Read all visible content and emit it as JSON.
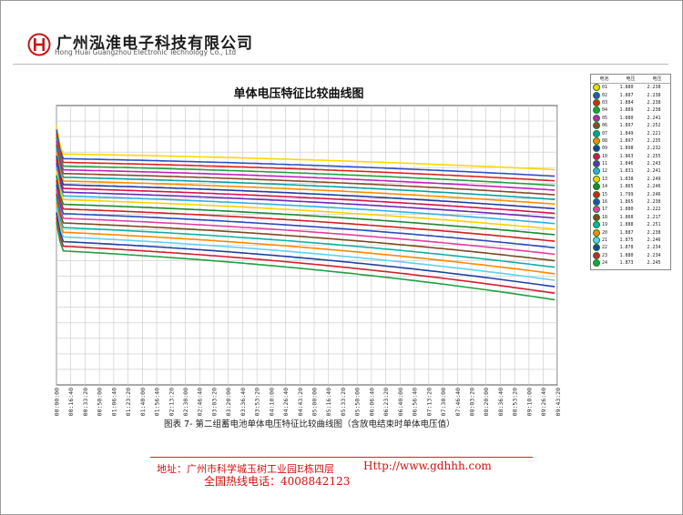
{
  "header": {
    "company_cn": "广州泓淮电子科技有限公司",
    "company_en": "Hong Huai Guangzhou Electronic Technology Co., Ltd"
  },
  "legend": {
    "headers": [
      "电池",
      "电压",
      "电压"
    ],
    "rows": [
      {
        "no": "01",
        "v1": "1.880",
        "v2": "2.238"
      },
      {
        "no": "02",
        "v1": "1.887",
        "v2": "2.238"
      },
      {
        "no": "03",
        "v1": "1.884",
        "v2": "2.238"
      },
      {
        "no": "04",
        "v1": "1.889",
        "v2": "2.238"
      },
      {
        "no": "05",
        "v1": "1.880",
        "v2": "2.241"
      },
      {
        "no": "06",
        "v1": "1.897",
        "v2": "2.252"
      },
      {
        "no": "07",
        "v1": "1.849",
        "v2": "2.221"
      },
      {
        "no": "08",
        "v1": "1.897",
        "v2": "2.235"
      },
      {
        "no": "09",
        "v1": "1.898",
        "v2": "2.232"
      },
      {
        "no": "10",
        "v1": "1.863",
        "v2": "2.255"
      },
      {
        "no": "11",
        "v1": "1.846",
        "v2": "2.243"
      },
      {
        "no": "12",
        "v1": "1.831",
        "v2": "2.241"
      },
      {
        "no": "13",
        "v1": "1.838",
        "v2": "2.249"
      },
      {
        "no": "14",
        "v1": "1.865",
        "v2": "2.246"
      },
      {
        "no": "15",
        "v1": "1.799",
        "v2": "2.246"
      },
      {
        "no": "16",
        "v1": "1.865",
        "v2": "2.238"
      },
      {
        "no": "17",
        "v1": "1.880",
        "v2": "2.222"
      },
      {
        "no": "18",
        "v1": "1.868",
        "v2": "2.217"
      },
      {
        "no": "19",
        "v1": "1.888",
        "v2": "2.251"
      },
      {
        "no": "20",
        "v1": "1.887",
        "v2": "2.238"
      },
      {
        "no": "21",
        "v1": "1.875",
        "v2": "2.246"
      },
      {
        "no": "22",
        "v1": "1.878",
        "v2": "2.234"
      },
      {
        "no": "23",
        "v1": "1.880",
        "v2": "2.234"
      },
      {
        "no": "24",
        "v1": "1.873",
        "v2": "2.245"
      }
    ]
  },
  "caption": "图表 7- 第二组蓄电池单体电压特征比较曲线图（含放电结束时单体电压值）",
  "footer": {
    "address": "地址：广州市科学城玉树工业园E栋四层",
    "url": "Http://www.gdhhh.com",
    "hotline": "全国热线电话：4008842123"
  },
  "colors": {
    "grid": "#c8c8c8",
    "footer_text": "#d01010"
  },
  "chart_data": {
    "type": "line",
    "title": "单体电压特征比较曲线图",
    "xlabel": "",
    "ylabel": "",
    "grid": true,
    "legend_placement": "right",
    "x_ticks": [
      "00:00:00",
      "00:16:40",
      "00:33:20",
      "00:50:00",
      "01:06:40",
      "01:23:20",
      "01:40:00",
      "01:56:40",
      "02:13:20",
      "02:30:00",
      "02:46:40",
      "03:03:20",
      "03:20:00",
      "03:36:40",
      "03:53:20",
      "04:10:00",
      "04:26:40",
      "04:43:20",
      "05:00:00",
      "05:16:40",
      "05:33:20",
      "05:50:00",
      "06:06:40",
      "06:23:20",
      "06:40:00",
      "06:56:40",
      "07:13:20",
      "07:30:00",
      "07:46:40",
      "08:03:20",
      "08:20:00",
      "08:36:40",
      "08:53:20",
      "09:10:00",
      "09:26:40",
      "09:43:20"
    ],
    "note_x": "x values are elapsed minutes from 00:00:00",
    "x_range_minutes": [
      0,
      583
    ],
    "y_range": [
      1.75,
      2.35
    ],
    "series": [
      {
        "color": "#ffd800",
        "start": 2.258,
        "end": 2.212
      },
      {
        "color": "#2b50c8",
        "start": 2.248,
        "end": 2.198
      },
      {
        "color": "#e02020",
        "start": 2.24,
        "end": 2.188
      },
      {
        "color": "#20a040",
        "start": 2.232,
        "end": 2.178
      },
      {
        "color": "#c020c0",
        "start": 2.224,
        "end": 2.168
      },
      {
        "color": "#8b4a2b",
        "start": 2.216,
        "end": 2.158
      },
      {
        "color": "#0aa0a0",
        "start": 2.208,
        "end": 2.148
      },
      {
        "color": "#ff8c00",
        "start": 2.2,
        "end": 2.138
      },
      {
        "color": "#1e3ca0",
        "start": 2.192,
        "end": 2.128
      },
      {
        "color": "#d81050",
        "start": 2.184,
        "end": 2.118
      },
      {
        "color": "#6a2ab8",
        "start": 2.176,
        "end": 2.108
      },
      {
        "color": "#30b0e0",
        "start": 2.168,
        "end": 2.096
      },
      {
        "color": "#ffd000",
        "start": 2.16,
        "end": 2.084
      },
      {
        "color": "#1a8a30",
        "start": 2.15,
        "end": 2.072
      },
      {
        "color": "#d02020",
        "start": 2.14,
        "end": 2.058
      },
      {
        "color": "#2a4ab8",
        "start": 2.13,
        "end": 2.044
      },
      {
        "color": "#e040a0",
        "start": 2.12,
        "end": 2.03
      },
      {
        "color": "#7a4a20",
        "start": 2.11,
        "end": 2.016
      },
      {
        "color": "#10b0a0",
        "start": 2.1,
        "end": 2.002
      },
      {
        "color": "#ff8800",
        "start": 2.09,
        "end": 1.988
      },
      {
        "color": "#60d0f0",
        "start": 2.08,
        "end": 1.974
      },
      {
        "color": "#2040a0",
        "start": 2.07,
        "end": 1.96
      },
      {
        "color": "#d02030",
        "start": 2.06,
        "end": 1.946
      },
      {
        "color": "#20a040",
        "start": 2.05,
        "end": 1.932
      }
    ]
  }
}
